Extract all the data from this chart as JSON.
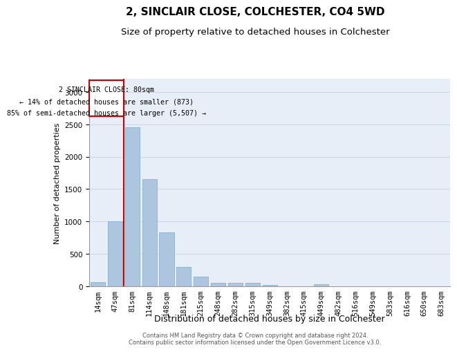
{
  "title1": "2, SINCLAIR CLOSE, COLCHESTER, CO4 5WD",
  "title2": "Size of property relative to detached houses in Colchester",
  "xlabel": "Distribution of detached houses by size in Colchester",
  "ylabel": "Number of detached properties",
  "categories": [
    "14sqm",
    "47sqm",
    "81sqm",
    "114sqm",
    "148sqm",
    "181sqm",
    "215sqm",
    "248sqm",
    "282sqm",
    "315sqm",
    "349sqm",
    "382sqm",
    "415sqm",
    "449sqm",
    "482sqm",
    "516sqm",
    "549sqm",
    "583sqm",
    "616sqm",
    "650sqm",
    "683sqm"
  ],
  "values": [
    60,
    1000,
    2450,
    1650,
    830,
    300,
    145,
    55,
    55,
    50,
    25,
    0,
    0,
    30,
    0,
    0,
    0,
    0,
    0,
    0,
    0
  ],
  "bar_color": "#adc6e0",
  "bar_edge_color": "#7aaac8",
  "annotation_line0": "2 SINCLAIR CLOSE: 80sqm",
  "annotation_line1": "← 14% of detached houses are smaller (873)",
  "annotation_line2": "85% of semi-detached houses are larger (5,507) →",
  "annotation_box_color": "#ffffff",
  "annotation_box_edge": "#cc0000",
  "vline_color": "#cc0000",
  "vline_x_index": 2,
  "grid_color": "#ccd5e5",
  "background_color": "#e8eef8",
  "footer1": "Contains HM Land Registry data © Crown copyright and database right 2024.",
  "footer2": "Contains public sector information licensed under the Open Government Licence v3.0.",
  "ylim": [
    0,
    3200
  ],
  "title1_fontsize": 11,
  "title2_fontsize": 9.5,
  "xlabel_fontsize": 9,
  "ylabel_fontsize": 8,
  "tick_fontsize": 7.5
}
